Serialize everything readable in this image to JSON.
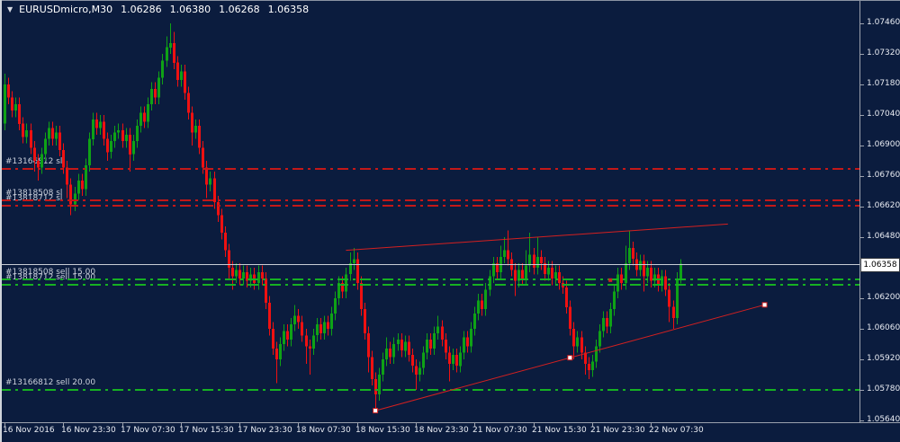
{
  "window": {
    "title_symbol": "EURUSDmicro,M30",
    "dropdown_glyph": "▼"
  },
  "colors": {
    "background": "#0b1c3e",
    "bull": "#0fa216",
    "bear": "#ef1111",
    "order_red": "#c41818",
    "order_green": "#16b122",
    "trend_red": "#d42020",
    "current_price_line": "#c9cdd6",
    "axis_line": "#9ba1ad",
    "axis_text": "#e8ebf2",
    "order_label_text": "#ccd1dc",
    "price_box_bg": "#ffffff",
    "price_box_text": "#000000"
  },
  "chart_data": {
    "type": "candlestick",
    "title": "EURUSDmicro,M30",
    "ohlc_display": {
      "open": "1.06286",
      "high": "1.06380",
      "low": "1.06268",
      "close": "1.06358"
    },
    "current_price": 1.06358,
    "ylim": [
      1.0564,
      1.0746
    ],
    "grid": false,
    "price_ticks": [
      "1.07460",
      "1.07320",
      "1.07180",
      "1.07040",
      "1.06900",
      "1.06760",
      "1.06620",
      "1.06480",
      "1.06340",
      "1.06200",
      "1.06060",
      "1.05920",
      "1.05780",
      "1.05640"
    ],
    "time_ticks": [
      {
        "label": "16 Nov 2016",
        "bar": 0
      },
      {
        "label": "16 Nov 23:30",
        "bar": 16
      },
      {
        "label": "17 Nov 07:30",
        "bar": 32
      },
      {
        "label": "17 Nov 15:30",
        "bar": 48
      },
      {
        "label": "17 Nov 23:30",
        "bar": 64
      },
      {
        "label": "18 Nov 07:30",
        "bar": 80
      },
      {
        "label": "18 Nov 15:30",
        "bar": 96
      },
      {
        "label": "18 Nov 23:30",
        "bar": 112
      },
      {
        "label": "21 Nov 07:30",
        "bar": 128
      },
      {
        "label": "21 Nov 15:30",
        "bar": 144
      },
      {
        "label": "21 Nov 23:30",
        "bar": 160
      },
      {
        "label": "22 Nov 07:30",
        "bar": 176
      }
    ],
    "order_lines": [
      {
        "label": "#13166812 sl",
        "price": 1.06795,
        "color": "red"
      },
      {
        "label": "#13818508 sl",
        "price": 1.0665,
        "color": "red"
      },
      {
        "label": "#13818712 sl",
        "price": 1.06625,
        "color": "red"
      },
      {
        "label": "#13818508 sell 15.00",
        "price": 1.06285,
        "color": "green"
      },
      {
        "label": "#13818712 sell 15.00",
        "price": 1.0626,
        "color": "green"
      },
      {
        "label": "#13166812 sell 20.00",
        "price": 1.05778,
        "color": "green"
      }
    ],
    "trendlines": [
      {
        "points": [
          [
            93,
            1.0642
          ],
          [
            197,
            1.0654
          ]
        ],
        "anchors": []
      },
      {
        "points": [
          [
            101,
            1.05685
          ],
          [
            207,
            1.0617
          ]
        ],
        "anchors": [
          101,
          154,
          207
        ]
      }
    ],
    "markers": [
      {
        "bar": 165,
        "price": 1.06283
      }
    ],
    "candles": [
      [
        1.07,
        1.0723,
        1.0697,
        1.0718
      ],
      [
        1.0718,
        1.0721,
        1.0709,
        1.0712
      ],
      [
        1.0712,
        1.0715,
        1.0703,
        1.0706
      ],
      [
        1.0706,
        1.0712,
        1.0703,
        1.0709
      ],
      [
        1.0709,
        1.0712,
        1.0697,
        1.07
      ],
      [
        1.07,
        1.0703,
        1.0691,
        1.0694
      ],
      [
        1.0694,
        1.07,
        1.0691,
        1.0697
      ],
      [
        1.0697,
        1.07,
        1.0686,
        1.0689
      ],
      [
        1.0689,
        1.0692,
        1.0678,
        1.0683
      ],
      [
        1.0683,
        1.0686,
        1.0674,
        1.068
      ],
      [
        1.068,
        1.0689,
        1.0677,
        1.0686
      ],
      [
        1.0686,
        1.0696,
        1.0683,
        1.0693
      ],
      [
        1.0693,
        1.0701,
        1.069,
        1.0698
      ],
      [
        1.0698,
        1.0701,
        1.069,
        1.0693
      ],
      [
        1.0693,
        1.0699,
        1.069,
        1.0696
      ],
      [
        1.0696,
        1.0699,
        1.0685,
        1.0688
      ],
      [
        1.0688,
        1.0691,
        1.0677,
        1.068
      ],
      [
        1.068,
        1.0683,
        1.0666,
        1.0672
      ],
      [
        1.0672,
        1.0675,
        1.0658,
        1.0663
      ],
      [
        1.0663,
        1.0671,
        1.066,
        1.0668
      ],
      [
        1.0668,
        1.0677,
        1.0665,
        1.0674
      ],
      [
        1.0674,
        1.0677,
        1.0667,
        1.067
      ],
      [
        1.067,
        1.0684,
        1.0667,
        1.0681
      ],
      [
        1.0681,
        1.0696,
        1.0678,
        1.0693
      ],
      [
        1.0693,
        1.0705,
        1.069,
        1.0702
      ],
      [
        1.0702,
        1.0705,
        1.0695,
        1.0698
      ],
      [
        1.0698,
        1.0704,
        1.0695,
        1.0701
      ],
      [
        1.0701,
        1.0704,
        1.069,
        1.0693
      ],
      [
        1.0693,
        1.0696,
        1.0683,
        1.0687
      ],
      [
        1.0687,
        1.0695,
        1.0684,
        1.0692
      ],
      [
        1.0692,
        1.0699,
        1.0689,
        1.0696
      ],
      [
        1.0696,
        1.07,
        1.0693,
        1.0697
      ],
      [
        1.0697,
        1.07,
        1.0689,
        1.0692
      ],
      [
        1.0692,
        1.0698,
        1.0689,
        1.0695
      ],
      [
        1.0695,
        1.0698,
        1.0678,
        1.0686
      ],
      [
        1.0686,
        1.0695,
        1.0683,
        1.0692
      ],
      [
        1.0692,
        1.0702,
        1.0689,
        1.0699
      ],
      [
        1.0699,
        1.0708,
        1.0696,
        1.0705
      ],
      [
        1.0705,
        1.0708,
        1.0698,
        1.0701
      ],
      [
        1.0701,
        1.0712,
        1.0698,
        1.0709
      ],
      [
        1.0709,
        1.0719,
        1.0706,
        1.0716
      ],
      [
        1.0716,
        1.0719,
        1.0709,
        1.0712
      ],
      [
        1.0712,
        1.0724,
        1.0709,
        1.0721
      ],
      [
        1.0721,
        1.0732,
        1.0718,
        1.0729
      ],
      [
        1.0729,
        1.074,
        1.0726,
        1.0735
      ],
      [
        1.0735,
        1.0746,
        1.0732,
        1.0737
      ],
      [
        1.0737,
        1.0742,
        1.0725,
        1.0728
      ],
      [
        1.0728,
        1.0731,
        1.0717,
        1.072
      ],
      [
        1.072,
        1.0727,
        1.0717,
        1.0724
      ],
      [
        1.0724,
        1.0727,
        1.0711,
        1.0714
      ],
      [
        1.0714,
        1.0717,
        1.0702,
        1.0705
      ],
      [
        1.0705,
        1.0708,
        1.069,
        1.0696
      ],
      [
        1.0696,
        1.0702,
        1.0693,
        1.0699
      ],
      [
        1.0699,
        1.0702,
        1.0686,
        1.0689
      ],
      [
        1.0689,
        1.0692,
        1.0677,
        1.068
      ],
      [
        1.068,
        1.0683,
        1.0666,
        1.0672
      ],
      [
        1.0672,
        1.0678,
        1.0669,
        1.0675
      ],
      [
        1.0675,
        1.0678,
        1.0661,
        1.0664
      ],
      [
        1.0664,
        1.0667,
        1.0655,
        1.0658
      ],
      [
        1.0658,
        1.0661,
        1.0647,
        1.065
      ],
      [
        1.065,
        1.0653,
        1.0639,
        1.0642
      ],
      [
        1.0642,
        1.0645,
        1.0629,
        1.0634
      ],
      [
        1.0634,
        1.0637,
        1.0624,
        1.063
      ],
      [
        1.063,
        1.0636,
        1.0627,
        1.0633
      ],
      [
        1.0633,
        1.0636,
        1.0626,
        1.0629
      ],
      [
        1.0629,
        1.0635,
        1.0626,
        1.0632
      ],
      [
        1.0632,
        1.0635,
        1.0625,
        1.0628
      ],
      [
        1.0628,
        1.0634,
        1.0625,
        1.0631
      ],
      [
        1.0631,
        1.0634,
        1.0624,
        1.0627
      ],
      [
        1.0627,
        1.0635,
        1.0624,
        1.0632
      ],
      [
        1.0632,
        1.0635,
        1.0626,
        1.0629
      ],
      [
        1.0629,
        1.0632,
        1.0615,
        1.0618
      ],
      [
        1.0618,
        1.0621,
        1.0603,
        1.0606
      ],
      [
        1.0606,
        1.0609,
        1.0594,
        1.0597
      ],
      [
        1.0597,
        1.06,
        1.0581,
        1.0592
      ],
      [
        1.0592,
        1.0602,
        1.0589,
        1.0599
      ],
      [
        1.0599,
        1.0608,
        1.0596,
        1.0605
      ],
      [
        1.0605,
        1.0608,
        1.0598,
        1.0601
      ],
      [
        1.0601,
        1.0611,
        1.0598,
        1.0608
      ],
      [
        1.0608,
        1.0617,
        1.0605,
        1.0612
      ],
      [
        1.0612,
        1.0615,
        1.0606,
        1.0609
      ],
      [
        1.0609,
        1.0612,
        1.06,
        1.0603
      ],
      [
        1.0603,
        1.0606,
        1.059,
        1.0598
      ],
      [
        1.0598,
        1.0601,
        1.0585,
        1.0597
      ],
      [
        1.0597,
        1.0606,
        1.0594,
        1.0603
      ],
      [
        1.0603,
        1.0611,
        1.06,
        1.0608
      ],
      [
        1.0608,
        1.0611,
        1.0601,
        1.0604
      ],
      [
        1.0604,
        1.0612,
        1.0601,
        1.0609
      ],
      [
        1.0609,
        1.0612,
        1.0603,
        1.0606
      ],
      [
        1.0606,
        1.0616,
        1.0603,
        1.0613
      ],
      [
        1.0613,
        1.0623,
        1.061,
        1.062
      ],
      [
        1.062,
        1.063,
        1.0617,
        1.0627
      ],
      [
        1.0627,
        1.063,
        1.062,
        1.0623
      ],
      [
        1.0623,
        1.0634,
        1.062,
        1.0631
      ],
      [
        1.0631,
        1.0641,
        1.0628,
        1.0636
      ],
      [
        1.0636,
        1.0643,
        1.0633,
        1.0638
      ],
      [
        1.0638,
        1.0641,
        1.0624,
        1.0627
      ],
      [
        1.0627,
        1.063,
        1.0612,
        1.0615
      ],
      [
        1.0615,
        1.0618,
        1.0601,
        1.0604
      ],
      [
        1.0604,
        1.0607,
        1.0586,
        1.0593
      ],
      [
        1.0593,
        1.0596,
        1.058,
        1.0583
      ],
      [
        1.0583,
        1.0586,
        1.0569,
        1.0576
      ],
      [
        1.0576,
        1.0588,
        1.0573,
        1.0585
      ],
      [
        1.0585,
        1.0595,
        1.0582,
        1.0592
      ],
      [
        1.0592,
        1.0602,
        1.0589,
        1.0597
      ],
      [
        1.0597,
        1.06,
        1.059,
        1.0593
      ],
      [
        1.0593,
        1.0602,
        1.059,
        1.0599
      ],
      [
        1.0599,
        1.0604,
        1.0596,
        1.0601
      ],
      [
        1.0601,
        1.0604,
        1.0593,
        1.0596
      ],
      [
        1.0596,
        1.0603,
        1.0593,
        1.06
      ],
      [
        1.06,
        1.0603,
        1.0591,
        1.0594
      ],
      [
        1.0594,
        1.0597,
        1.0586,
        1.0589
      ],
      [
        1.0589,
        1.0592,
        1.0578,
        1.0585
      ],
      [
        1.0585,
        1.0591,
        1.0582,
        1.0588
      ],
      [
        1.0588,
        1.0598,
        1.0585,
        1.0595
      ],
      [
        1.0595,
        1.0604,
        1.0592,
        1.0601
      ],
      [
        1.0601,
        1.0604,
        1.0594,
        1.0597
      ],
      [
        1.0597,
        1.0607,
        1.0594,
        1.0604
      ],
      [
        1.0604,
        1.0612,
        1.0601,
        1.0607
      ],
      [
        1.0607,
        1.061,
        1.0598,
        1.0601
      ],
      [
        1.0601,
        1.0604,
        1.0592,
        1.0595
      ],
      [
        1.0595,
        1.0598,
        1.0582,
        1.059
      ],
      [
        1.059,
        1.0597,
        1.0587,
        1.0594
      ],
      [
        1.0594,
        1.0597,
        1.0586,
        1.0589
      ],
      [
        1.0589,
        1.0598,
        1.0586,
        1.0595
      ],
      [
        1.0595,
        1.0605,
        1.0592,
        1.0602
      ],
      [
        1.0602,
        1.0605,
        1.0595,
        1.0598
      ],
      [
        1.0598,
        1.0609,
        1.0595,
        1.0606
      ],
      [
        1.0606,
        1.0616,
        1.0603,
        1.0613
      ],
      [
        1.0613,
        1.0622,
        1.061,
        1.0619
      ],
      [
        1.0619,
        1.0622,
        1.0612,
        1.0615
      ],
      [
        1.0615,
        1.0627,
        1.0612,
        1.0624
      ],
      [
        1.0624,
        1.0633,
        1.0621,
        1.063
      ],
      [
        1.063,
        1.0639,
        1.0627,
        1.0636
      ],
      [
        1.0636,
        1.0639,
        1.0629,
        1.0632
      ],
      [
        1.0632,
        1.0644,
        1.0629,
        1.0639
      ],
      [
        1.0639,
        1.0648,
        1.0636,
        1.0642
      ],
      [
        1.0642,
        1.0651,
        1.0635,
        1.0638
      ],
      [
        1.0638,
        1.0641,
        1.063,
        1.0633
      ],
      [
        1.0633,
        1.0636,
        1.0621,
        1.0628
      ],
      [
        1.0628,
        1.0636,
        1.0625,
        1.0633
      ],
      [
        1.0633,
        1.0636,
        1.0626,
        1.0629
      ],
      [
        1.0629,
        1.0642,
        1.0626,
        1.0635
      ],
      [
        1.0635,
        1.065,
        1.0632,
        1.064
      ],
      [
        1.064,
        1.0643,
        1.0631,
        1.0634
      ],
      [
        1.0634,
        1.0648,
        1.0631,
        1.0639
      ],
      [
        1.0639,
        1.0642,
        1.0633,
        1.0636
      ],
      [
        1.0636,
        1.0639,
        1.0628,
        1.0631
      ],
      [
        1.0631,
        1.0637,
        1.0628,
        1.0634
      ],
      [
        1.0634,
        1.0637,
        1.0626,
        1.0629
      ],
      [
        1.0629,
        1.0635,
        1.0626,
        1.0632
      ],
      [
        1.0632,
        1.0635,
        1.0624,
        1.0627
      ],
      [
        1.0627,
        1.063,
        1.0622,
        1.0625
      ],
      [
        1.0625,
        1.0628,
        1.0613,
        1.0616
      ],
      [
        1.0616,
        1.0619,
        1.0603,
        1.0606
      ],
      [
        1.0606,
        1.0609,
        1.0592,
        1.0598
      ],
      [
        1.0598,
        1.0605,
        1.0595,
        1.0602
      ],
      [
        1.0602,
        1.0605,
        1.0592,
        1.0595
      ],
      [
        1.0595,
        1.0598,
        1.0585,
        1.059
      ],
      [
        1.059,
        1.0593,
        1.0583,
        1.0587
      ],
      [
        1.0587,
        1.0594,
        1.0584,
        1.0591
      ],
      [
        1.0591,
        1.0601,
        1.0588,
        1.0598
      ],
      [
        1.0598,
        1.0608,
        1.0595,
        1.0605
      ],
      [
        1.0605,
        1.0614,
        1.0602,
        1.0611
      ],
      [
        1.0611,
        1.0614,
        1.0604,
        1.0607
      ],
      [
        1.0607,
        1.0618,
        1.0604,
        1.0615
      ],
      [
        1.0615,
        1.0626,
        1.0612,
        1.0623
      ],
      [
        1.0623,
        1.0634,
        1.062,
        1.0631
      ],
      [
        1.0631,
        1.0634,
        1.0624,
        1.0627
      ],
      [
        1.0627,
        1.0644,
        1.0624,
        1.0636
      ],
      [
        1.0636,
        1.0651,
        1.0633,
        1.0643
      ],
      [
        1.0643,
        1.0646,
        1.0635,
        1.0638
      ],
      [
        1.0638,
        1.0641,
        1.063,
        1.0633
      ],
      [
        1.0633,
        1.064,
        1.063,
        1.0637
      ],
      [
        1.0637,
        1.064,
        1.0623,
        1.063
      ],
      [
        1.063,
        1.0637,
        1.0627,
        1.0634
      ],
      [
        1.0634,
        1.0637,
        1.0625,
        1.0628
      ],
      [
        1.0628,
        1.0634,
        1.0625,
        1.0631
      ],
      [
        1.0631,
        1.0634,
        1.0623,
        1.0626
      ],
      [
        1.0626,
        1.0633,
        1.0623,
        1.063
      ],
      [
        1.063,
        1.0633,
        1.0621,
        1.0624
      ],
      [
        1.0624,
        1.0627,
        1.0609,
        1.0616
      ],
      [
        1.0616,
        1.0619,
        1.0606,
        1.0611
      ],
      [
        1.0611,
        1.0632,
        1.0608,
        1.0629
      ],
      [
        1.0629,
        1.0638,
        1.06268,
        1.06358
      ]
    ]
  }
}
